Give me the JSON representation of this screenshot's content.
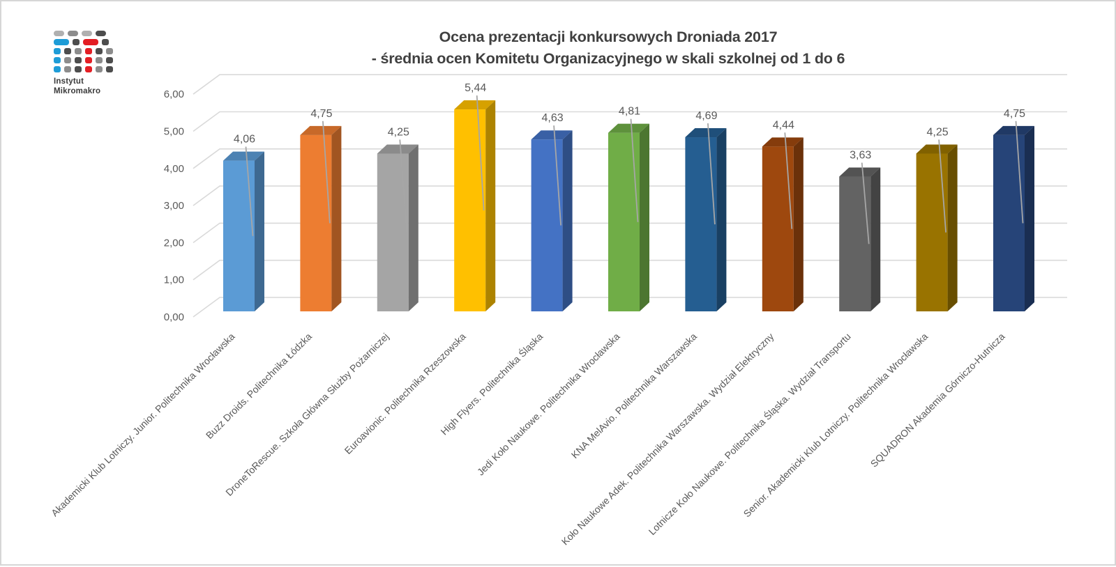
{
  "logo": {
    "line1": "Instytut",
    "line2": "Mikromakro",
    "colors": {
      "B": "#1E9CD7",
      "R": "#E31E24",
      "L": "#B0B0B0",
      "G": "#8C8C8C",
      "D": "#4D4D4D"
    },
    "pattern": [
      [
        "L.p",
        "G.p",
        "L.p",
        "D.p"
      ],
      [
        "B.w",
        "D.d",
        "R.w",
        "D.d"
      ],
      [
        "B.d",
        "D.d",
        "G.d",
        "R.d",
        "D.d",
        "G.d"
      ],
      [
        "B.d",
        "G.d",
        "D.d",
        "R.d",
        "G.d",
        "D.d"
      ],
      [
        "B.d",
        "G.d",
        "D.d",
        "R.d",
        "G.d",
        "D.d"
      ]
    ]
  },
  "title": {
    "line1": "Ocena prezentacji konkursowych Droniada 2017",
    "line2": "- średnia ocen Komitetu Organizacyjnego w skali szkolnej od 1 do 6"
  },
  "chart_data": {
    "type": "bar",
    "style": "3d-column",
    "title": "Ocena prezentacji konkursowych Droniada 2017 - średnia ocen Komitetu Organizacyjnego w skali szkolnej od 1 do 6",
    "categories": [
      "Akademicki Klub Lotniczy. Junior. Politechnika Wrocławska",
      "Buzz Droids. Politechnika Łódzka",
      "DroneToRescue. Szkoła Główna Służby Pożarniczej",
      "Euroavionic. Politechnika Rzeszowska",
      "High Flyers. Politechnika Śląska",
      "Jedi Koło Naukowe. Politechnika Wrocławska",
      "KNA MelAvio. Politechnika Warszawska",
      "Koło Naukowe Adek. Politechnika Warszawska. Wydział Elektryczny",
      "Lotnicze Koło Naukowe. Politechnika Śląska. Wydział Transportu",
      "Senior. Akademicki Klub Lotniczy. Politechnika Wrocławska",
      "SQUADRON Akademia Górniczo-Hutnicza"
    ],
    "values": [
      4.06,
      4.75,
      4.25,
      5.44,
      4.63,
      4.81,
      4.69,
      4.44,
      3.63,
      4.25,
      4.75
    ],
    "value_labels": [
      "4,06",
      "4,75",
      "4,25",
      "5,44",
      "4,63",
      "4,81",
      "4,69",
      "4,44",
      "3,63",
      "4,25",
      "4,75"
    ],
    "bar_colors": [
      "#5B9BD5",
      "#ED7D31",
      "#A5A5A5",
      "#FFC000",
      "#4472C4",
      "#70AD47",
      "#255E91",
      "#9E480E",
      "#636363",
      "#997300",
      "#264478"
    ],
    "ylim": [
      0,
      6
    ],
    "yticks": [
      0,
      1,
      2,
      3,
      4,
      5,
      6
    ],
    "ytick_labels": [
      "0,00",
      "1,00",
      "2,00",
      "3,00",
      "4,00",
      "5,00",
      "6,00"
    ],
    "xlabel": "",
    "ylabel": "",
    "grid": true,
    "legend": false,
    "colors_meta": {
      "gridline": "#D9D9D9",
      "axis_text": "#595959",
      "leader_line": "#A6A6A6",
      "title_text": "#404040"
    }
  }
}
